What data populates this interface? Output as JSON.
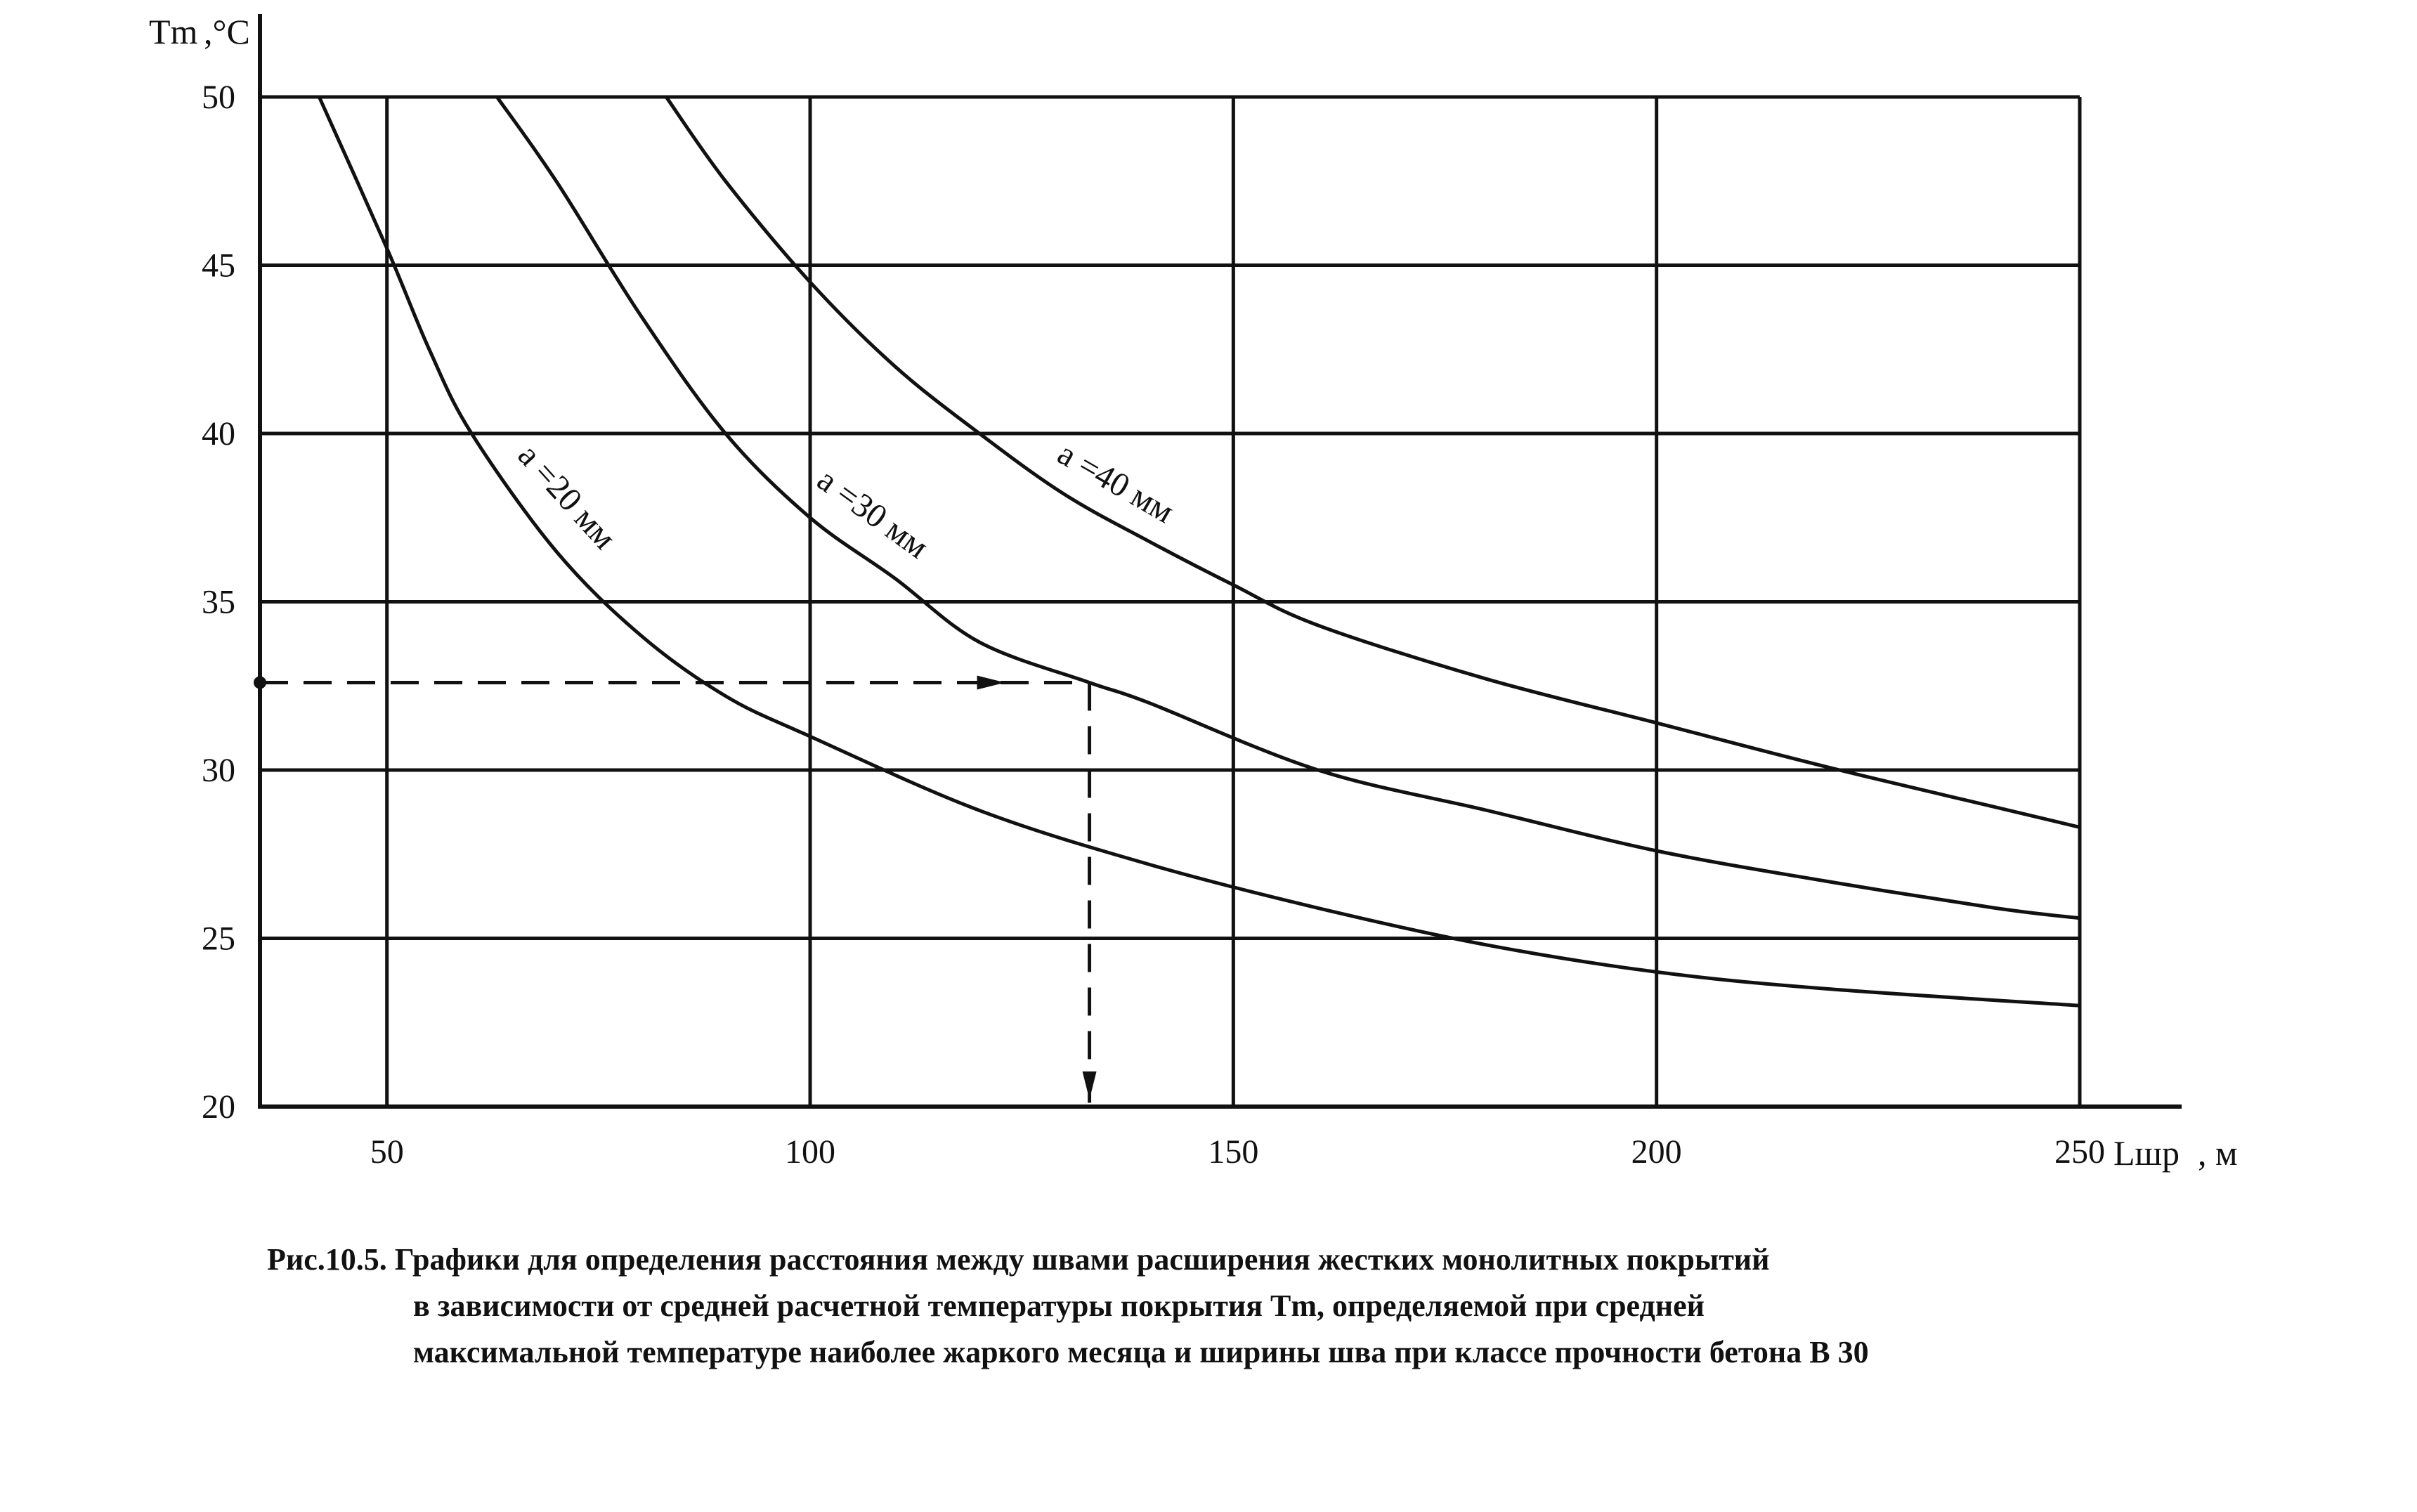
{
  "chart_data": {
    "type": "line",
    "y_axis": {
      "label": "Tm",
      "unit": ",°C",
      "ticks": [
        20,
        25,
        30,
        35,
        40,
        45,
        50
      ],
      "ylim": [
        20,
        50
      ]
    },
    "x_axis": {
      "label": "Lшр",
      "unit": ", м",
      "ticks": [
        50,
        100,
        150,
        200,
        250
      ],
      "xlim": [
        35,
        250
      ]
    },
    "grid": true,
    "series": [
      {
        "name": "а =20 мм",
        "x": [
          42,
          50,
          55,
          60,
          70,
          80,
          90,
          100,
          120,
          140,
          160,
          180,
          200,
          220,
          250
        ],
        "y": [
          50,
          45.5,
          42.5,
          40,
          36.5,
          34,
          32.2,
          31,
          28.8,
          27.2,
          25.9,
          24.8,
          24,
          23.5,
          23
        ]
      },
      {
        "name": "а =30 мм",
        "x": [
          63,
          70,
          80,
          90,
          100,
          110,
          120,
          133,
          140,
          160,
          180,
          200,
          220,
          240,
          250
        ],
        "y": [
          50,
          47.5,
          43.5,
          40,
          37.5,
          35.7,
          33.8,
          32.6,
          32,
          30,
          28.8,
          27.6,
          26.7,
          25.9,
          25.6
        ]
      },
      {
        "name": "а =40 мм",
        "x": [
          83,
          90,
          100,
          110,
          120,
          130,
          140,
          150,
          160,
          180,
          200,
          220,
          240,
          250
        ],
        "y": [
          50,
          47.5,
          44.5,
          42,
          40,
          38.2,
          36.8,
          35.5,
          34.3,
          32.7,
          31.4,
          30.1,
          28.9,
          28.3
        ]
      }
    ],
    "annotation": {
      "x": 133,
      "y": 32.6
    }
  },
  "caption": {
    "line1": "Рис.10.5. Графики для определения расстояния между швами расширения  жестких монолитных покрытий",
    "line2": "в  зависимости  от  средней  расчетной  температуры покрытия  Tm,  определяемой   при  средней",
    "line3": "максимальной  температуре наиболее жаркого месяца и ширины шва при классе прочности бетона В 30"
  }
}
